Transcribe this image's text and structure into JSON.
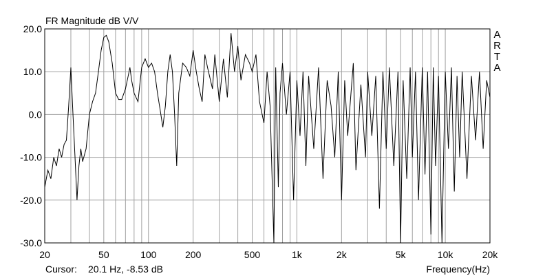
{
  "chart_data": {
    "type": "line",
    "title": "FR Magnitude dB V/V",
    "watermark": "ARTA",
    "xlabel": "Frequency(Hz)",
    "cursor_label": "Cursor:",
    "cursor_value": "20.1 Hz, -8.53 dB",
    "xscale": "log",
    "xlim": [
      20,
      20000
    ],
    "ylim": [
      -30,
      20
    ],
    "grid": true,
    "xticks": [
      20,
      50,
      100,
      200,
      500,
      {
        "value": 1000,
        "label": "1k"
      },
      {
        "value": 2000,
        "label": "2k"
      },
      {
        "value": 5000,
        "label": "5k"
      },
      {
        "value": 10000,
        "label": "10k"
      },
      {
        "value": 20000,
        "label": "20k"
      }
    ],
    "xminor": [
      30,
      40,
      60,
      70,
      80,
      90,
      300,
      400,
      600,
      700,
      800,
      900,
      3000,
      4000,
      6000,
      7000,
      8000,
      9000
    ],
    "yticks": [
      {
        "value": 20,
        "label": "20.0"
      },
      {
        "value": 10,
        "label": "10.0"
      },
      {
        "value": 0,
        "label": "0.0"
      },
      {
        "value": -10,
        "label": "-10.0"
      },
      {
        "value": -20,
        "label": "-20.0"
      },
      {
        "value": -30,
        "label": "-30.0"
      }
    ],
    "series": [
      {
        "color": "#000000",
        "x": [
          20,
          21,
          22,
          23,
          24,
          25,
          26,
          27,
          28,
          29,
          30,
          31,
          32,
          33,
          34,
          35,
          36,
          38,
          40,
          42,
          44,
          46,
          48,
          50,
          52,
          54,
          57,
          60,
          63,
          66,
          70,
          73,
          75,
          77,
          80,
          85,
          90,
          95,
          100,
          105,
          110,
          115,
          120,
          125,
          130,
          135,
          140,
          145,
          150,
          155,
          160,
          170,
          180,
          190,
          200,
          210,
          220,
          230,
          240,
          250,
          270,
          280,
          300,
          320,
          340,
          360,
          380,
          400,
          420,
          450,
          480,
          500,
          530,
          560,
          600,
          630,
          660,
          700,
          720,
          750,
          770,
          800,
          850,
          900,
          950,
          1000,
          1050,
          1100,
          1150,
          1200,
          1300,
          1400,
          1500,
          1600,
          1700,
          1800,
          1900,
          2000,
          2100,
          2200,
          2400,
          2500,
          2700,
          2900,
          3000,
          3200,
          3400,
          3600,
          3800,
          4000,
          4200,
          4500,
          4800,
          5000,
          5200,
          5500,
          5800,
          6000,
          6300,
          6600,
          7000,
          7300,
          7600,
          8000,
          8300,
          8600,
          9000,
          9500,
          10000,
          10500,
          11000,
          11500,
          12000,
          12500,
          13000,
          14000,
          15000,
          16000,
          17000,
          18000,
          19000,
          20000
        ],
        "values": [
          -17,
          -13,
          -15,
          -10,
          -12,
          -8,
          -10,
          -7,
          -6,
          2,
          11,
          0,
          -10,
          -20,
          -12,
          -8,
          -11,
          -8,
          0,
          3,
          5,
          10,
          15,
          18,
          18.5,
          17,
          12,
          5,
          3.5,
          3.5,
          6,
          9,
          11,
          8,
          5,
          3,
          11,
          13,
          11,
          12,
          10,
          5,
          1,
          -3,
          2,
          10,
          14,
          10,
          0,
          -12,
          5,
          12,
          11,
          9,
          15,
          10,
          6,
          3,
          14,
          11,
          6,
          14,
          3,
          13,
          4,
          19,
          10,
          16,
          8,
          14,
          12,
          10,
          14,
          3,
          -2,
          10,
          2,
          -30,
          11,
          -17,
          5,
          12,
          0,
          10,
          -20,
          8,
          -5,
          10,
          -12,
          9,
          -8,
          11,
          -15,
          8,
          2,
          -10,
          10,
          -20,
          8,
          -5,
          12,
          -13,
          7,
          -10,
          10,
          -5,
          9,
          -22,
          10,
          -8,
          11,
          -12,
          10,
          -30,
          8,
          -15,
          11,
          -10,
          10,
          -20,
          11,
          -14,
          10,
          -28,
          11,
          -12,
          9,
          -30,
          10,
          -8,
          11,
          -18,
          9,
          -10,
          10,
          -15,
          9,
          -6,
          10,
          -8,
          8,
          4
        ]
      }
    ]
  }
}
